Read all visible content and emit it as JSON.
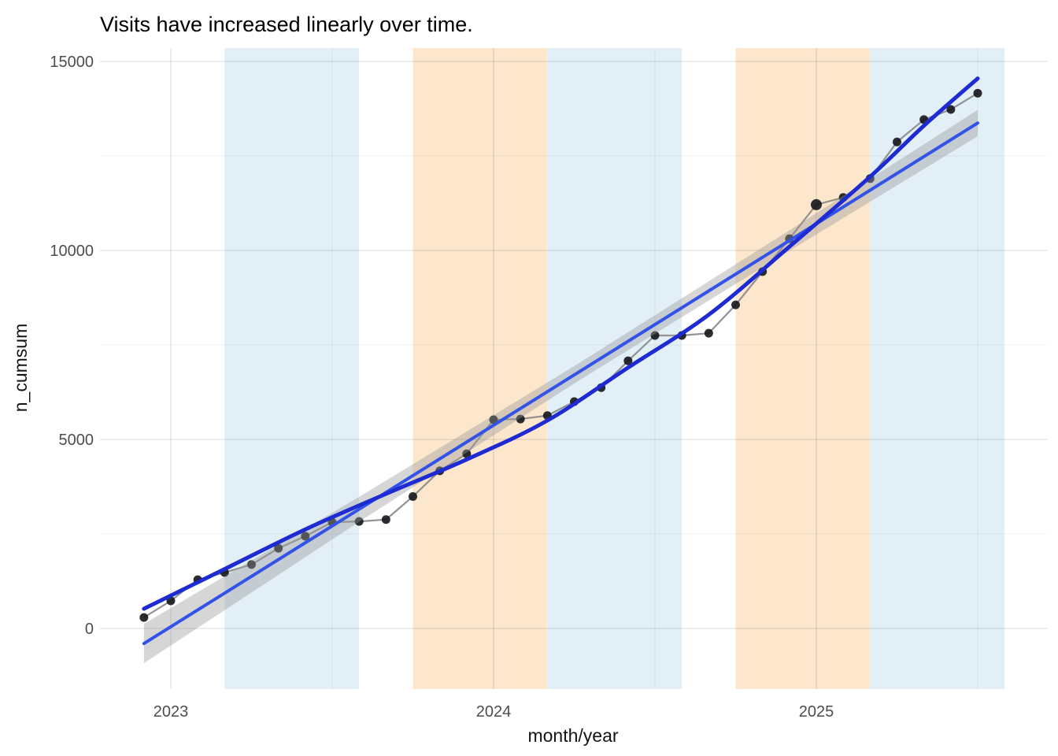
{
  "figure": {
    "title": "Visits have increased linearly over time.",
    "x_axis_title": "month/year",
    "y_axis_title": "n_cumsum"
  },
  "chart_data": {
    "type": "scatter",
    "subtype": "monthly cumulative sum with linear and loess smooths",
    "title": "Visits have increased linearly over time.",
    "xlabel": "month/year",
    "ylabel": "n_cumsum",
    "x_tick_labels": [
      "2023",
      "2024",
      "2025"
    ],
    "x_ticks": [
      {
        "label": "2023",
        "date": "2023-01"
      },
      {
        "label": "2024",
        "date": "2024-01"
      },
      {
        "label": "2025",
        "date": "2025-01"
      }
    ],
    "x_minor_dates": [
      "2023-07",
      "2024-07",
      "2025-07"
    ],
    "y_ticks": [
      0,
      5000,
      10000,
      15000
    ],
    "y_minor_ticks": [
      2500,
      7500,
      12500
    ],
    "ylim": [
      -1600,
      15350
    ],
    "grid": true,
    "legend": "none",
    "points": [
      {
        "date": "2022-12",
        "value": 290
      },
      {
        "date": "2023-01",
        "value": 730
      },
      {
        "date": "2023-02",
        "value": 1290
      },
      {
        "date": "2023-03",
        "value": 1480
      },
      {
        "date": "2023-04",
        "value": 1690
      },
      {
        "date": "2023-05",
        "value": 2120
      },
      {
        "date": "2023-06",
        "value": 2440
      },
      {
        "date": "2023-07",
        "value": 2810
      },
      {
        "date": "2023-08",
        "value": 2830
      },
      {
        "date": "2023-09",
        "value": 2880
      },
      {
        "date": "2023-10",
        "value": 3490
      },
      {
        "date": "2023-11",
        "value": 4170
      },
      {
        "date": "2023-12",
        "value": 4620
      },
      {
        "date": "2024-01",
        "value": 5520
      },
      {
        "date": "2024-02",
        "value": 5540
      },
      {
        "date": "2024-03",
        "value": 5630
      },
      {
        "date": "2024-04",
        "value": 6000
      },
      {
        "date": "2024-05",
        "value": 6370
      },
      {
        "date": "2024-06",
        "value": 7080
      },
      {
        "date": "2024-07",
        "value": 7750
      },
      {
        "date": "2024-08",
        "value": 7750
      },
      {
        "date": "2024-09",
        "value": 7810
      },
      {
        "date": "2024-10",
        "value": 8560
      },
      {
        "date": "2024-11",
        "value": 9440
      },
      {
        "date": "2024-12",
        "value": 10310
      },
      {
        "date": "2025-01",
        "value": 11210
      },
      {
        "date": "2025-02",
        "value": 11400
      },
      {
        "date": "2025-03",
        "value": 11900
      },
      {
        "date": "2025-04",
        "value": 12870
      },
      {
        "date": "2025-05",
        "value": 13460
      },
      {
        "date": "2025-06",
        "value": 13730
      },
      {
        "date": "2025-07",
        "value": 14160
      }
    ],
    "highlight_point": {
      "date": "2025-01",
      "radius": 7
    },
    "linear_fit": {
      "name": "linear fit (lm)",
      "start": {
        "i": 0,
        "v": -400
      },
      "end": {
        "i": 31,
        "v": 13370
      }
    },
    "loess_trend": {
      "name": "loess smooth",
      "points": [
        {
          "i": 0,
          "v": 520
        },
        {
          "i": 3,
          "v": 1570
        },
        {
          "i": 6,
          "v": 2620
        },
        {
          "i": 9,
          "v": 3560
        },
        {
          "i": 12,
          "v": 4470
        },
        {
          "i": 15,
          "v": 5500
        },
        {
          "i": 18,
          "v": 6900
        },
        {
          "i": 21,
          "v": 8300
        },
        {
          "i": 24,
          "v": 10100
        },
        {
          "i": 27,
          "v": 11950
        },
        {
          "i": 29,
          "v": 13300
        },
        {
          "i": 31,
          "v": 14550
        }
      ]
    },
    "ci_ribbon": {
      "name": "confidence ribbon",
      "stations": [
        {
          "i": 0,
          "upper": 120,
          "lower": -920
        },
        {
          "i": 8,
          "upper": 3480,
          "lower": 2820
        },
        {
          "i": 16,
          "upper": 6940,
          "lower": 6480
        },
        {
          "i": 24,
          "upper": 10530,
          "lower": 9990
        },
        {
          "i": 31,
          "upper": 13720,
          "lower": 13020
        }
      ]
    },
    "bands": [
      {
        "start": "2023-03",
        "end": "2023-08",
        "kind": "blue"
      },
      {
        "start": "2023-10",
        "end": "2024-03",
        "kind": "orange"
      },
      {
        "start": "2024-03",
        "end": "2024-08",
        "kind": "blue"
      },
      {
        "start": "2024-10",
        "end": "2025-03",
        "kind": "orange"
      },
      {
        "start": "2025-03",
        "end": "2025-08",
        "kind": "blue"
      }
    ],
    "colors": {
      "band_blue": "#E2EFF7",
      "band_orange": "#FDE7CC",
      "point": "#14161B",
      "data_line": "#878787",
      "lm_line": "#3352E8",
      "loess_line": "#1E2BD2",
      "ribbon": "#999999",
      "grid_major": "rgba(0,0,0,0.085)",
      "grid_minor": "rgba(0,0,0,0.045)",
      "axis_text": "#4D4D4D",
      "title_text": "#000000",
      "background": "#FFFFFF"
    }
  }
}
